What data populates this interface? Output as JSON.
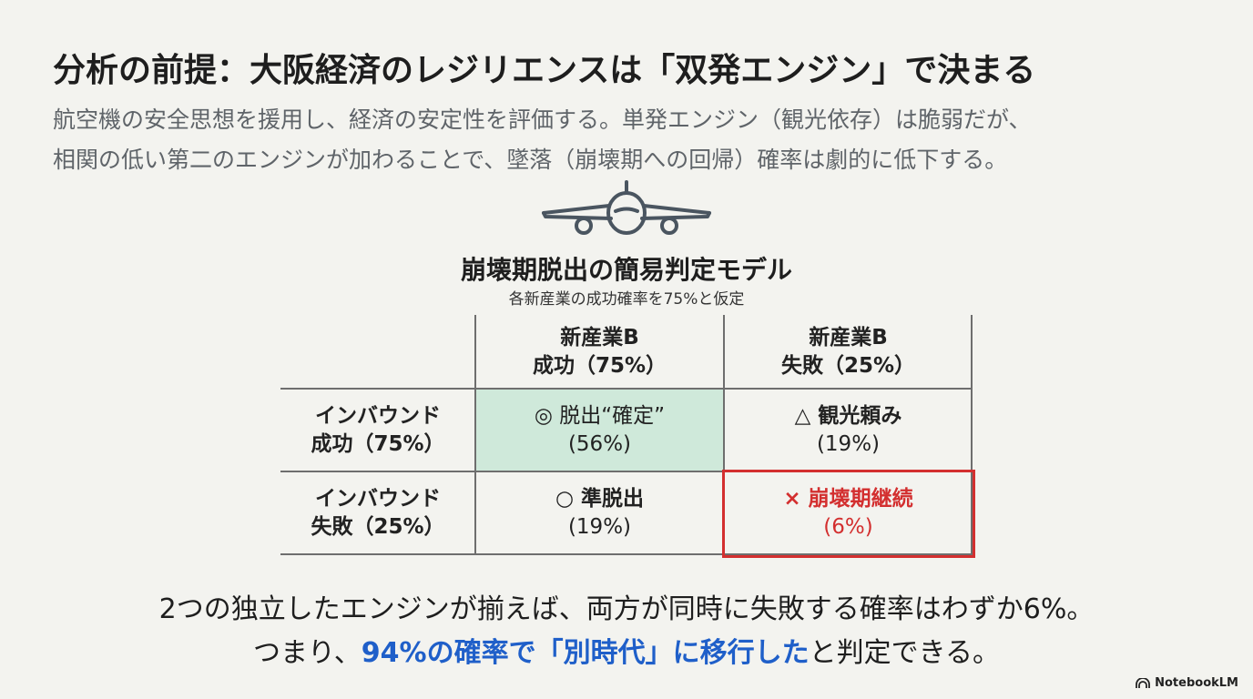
{
  "header": {
    "title": "分析の前提：大阪経済のレジリエンスは「双発エンジン」で決まる",
    "subtitle_lines": [
      "航空機の安全思想を援用し、経済の安定性を評価する。単発エンジン（観光依存）は脆弱だが、",
      "相関の低い第二のエンジンが加わることで、墜落（崩壊期への回帰）確率は劇的に低下する。"
    ]
  },
  "model": {
    "title": "崩壊期脱出の簡易判定モデル",
    "note": "各新産業の成功確率を75%と仮定",
    "columns": [
      {
        "line1": "新産業B",
        "line2": "成功（75%）"
      },
      {
        "line1": "新産業B",
        "line2": "失敗（25%）"
      }
    ],
    "rows": [
      {
        "line1": "インバウンド",
        "line2": "成功（75%）",
        "cells": [
          {
            "label": "◎ 脱出“確定”",
            "value": "(56%)"
          },
          {
            "label": "△ 観光頼み",
            "value": "(19%)"
          }
        ]
      },
      {
        "line1": "インバウンド",
        "line2": "失敗（25%）",
        "cells": [
          {
            "label": "○ 準脱出",
            "value": "(19%)"
          },
          {
            "label": "× 崩壊期継続",
            "value": "(6%)"
          }
        ]
      }
    ],
    "colors": {
      "highlight_green": "#cfe9da",
      "danger_red": "#d32f2f"
    }
  },
  "conclusion": {
    "line1": "2つの独立したエンジンが揃えば、両方が同時に失敗する確率はわずか6%。",
    "line2_prefix": "つまり、",
    "line2_highlight": "94%の確率で「別時代」に移行した",
    "line2_suffix": "と判定できる。",
    "highlight_color": "#1f5fc9"
  },
  "brand": {
    "icon": "notebooklm-icon",
    "label": "NotebookLM"
  }
}
